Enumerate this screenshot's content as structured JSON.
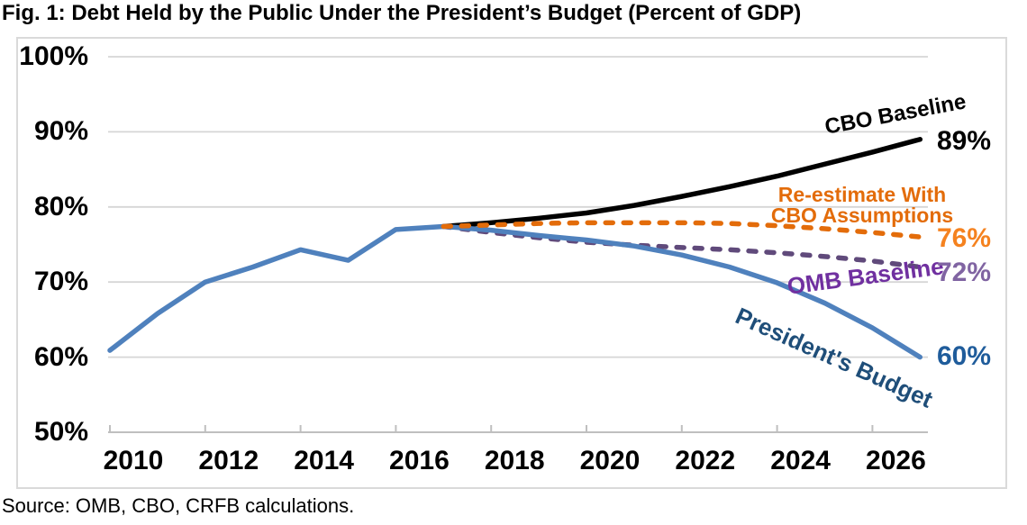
{
  "title": "Fig. 1: Debt Held by the Public Under the President’s Budget (Percent of GDP)",
  "source_note": "Source: OMB, CBO, CRFB calculations.",
  "colors": {
    "cbo_baseline": "#000000",
    "re_estimate": "#e36c0a",
    "re_estimate_value_label": "#f5821f",
    "omb_baseline_line": "#604a7b",
    "omb_baseline_label": "#7030a0",
    "omb_value_label": "#8064a2",
    "presidents_budget_line": "#4f81bd",
    "presidents_budget_label": "#1f4e79",
    "presidents_value_label": "#1f5c9b",
    "gridline": "#d6d6d6",
    "axis": "#bfbfbf"
  },
  "chart_data": {
    "type": "line",
    "title": "Fig. 1: Debt Held by the Public Under the President’s Budget (Percent of GDP)",
    "xlabel": "",
    "ylabel": "Percent of GDP",
    "xlim": [
      2010,
      2027
    ],
    "ylim": [
      50,
      100
    ],
    "grid": "horizontal",
    "legend_position": "inline-labels",
    "x_ticks": [
      2010,
      2012,
      2014,
      2016,
      2018,
      2020,
      2022,
      2024,
      2026
    ],
    "x_tick_labels": [
      "2010",
      "2012",
      "2014",
      "2016",
      "2018",
      "2020",
      "2022",
      "2024",
      "2026"
    ],
    "y_ticks": [
      100,
      90,
      80,
      70,
      60,
      50
    ],
    "y_tick_labels": [
      "100%",
      "90%",
      "80%",
      "70%",
      "60%",
      "50%"
    ],
    "series": [
      {
        "name": "CBO Baseline",
        "slug": "cbo-baseline",
        "color": "#000000",
        "style": "solid",
        "start_year": 2017,
        "years": [
          2017,
          2018,
          2019,
          2020,
          2021,
          2022,
          2023,
          2024,
          2025,
          2026,
          2027
        ],
        "values": [
          77.4,
          77.9,
          78.5,
          79.2,
          80.2,
          81.4,
          82.7,
          84.1,
          85.7,
          87.3,
          89.0
        ],
        "end_label": "89%",
        "end_value": 89
      },
      {
        "name": "Re-estimate With CBO Assumptions",
        "slug": "re-estimate-with-cbo-assumptions",
        "label_lines": [
          "Re-estimate With",
          "CBO Assumptions"
        ],
        "color": "#e36c0a",
        "style": "dashed",
        "start_year": 2017,
        "years": [
          2017,
          2018,
          2019,
          2020,
          2021,
          2022,
          2023,
          2024,
          2025,
          2026,
          2027
        ],
        "values": [
          77.4,
          77.6,
          77.8,
          77.9,
          77.9,
          77.9,
          77.8,
          77.5,
          77.1,
          76.6,
          76.0
        ],
        "end_label": "76%",
        "end_value": 76
      },
      {
        "name": "OMB Baseline",
        "slug": "omb-baseline",
        "color": "#604a7b",
        "style": "dashed",
        "start_year": 2017,
        "years": [
          2017,
          2018,
          2019,
          2020,
          2021,
          2022,
          2023,
          2024,
          2025,
          2026,
          2027
        ],
        "values": [
          77.4,
          76.6,
          75.9,
          75.3,
          74.9,
          74.6,
          74.3,
          73.9,
          73.4,
          72.8,
          72.0
        ],
        "end_label": "72%",
        "end_value": 72
      },
      {
        "name": "President's Budget",
        "slug": "presidents-budget",
        "color": "#4f81bd",
        "style": "solid",
        "start_year": 2010,
        "years": [
          2010,
          2011,
          2012,
          2013,
          2014,
          2015,
          2016,
          2017,
          2018,
          2019,
          2020,
          2021,
          2022,
          2023,
          2024,
          2025,
          2026,
          2027
        ],
        "values": [
          60.9,
          65.8,
          70.0,
          72.0,
          74.3,
          72.9,
          77.0,
          77.4,
          76.9,
          76.2,
          75.6,
          74.8,
          73.6,
          72.0,
          69.9,
          67.2,
          63.9,
          60.0
        ],
        "end_label": "60%",
        "end_value": 60
      }
    ],
    "draw_order": [
      0,
      2,
      3,
      1
    ]
  }
}
